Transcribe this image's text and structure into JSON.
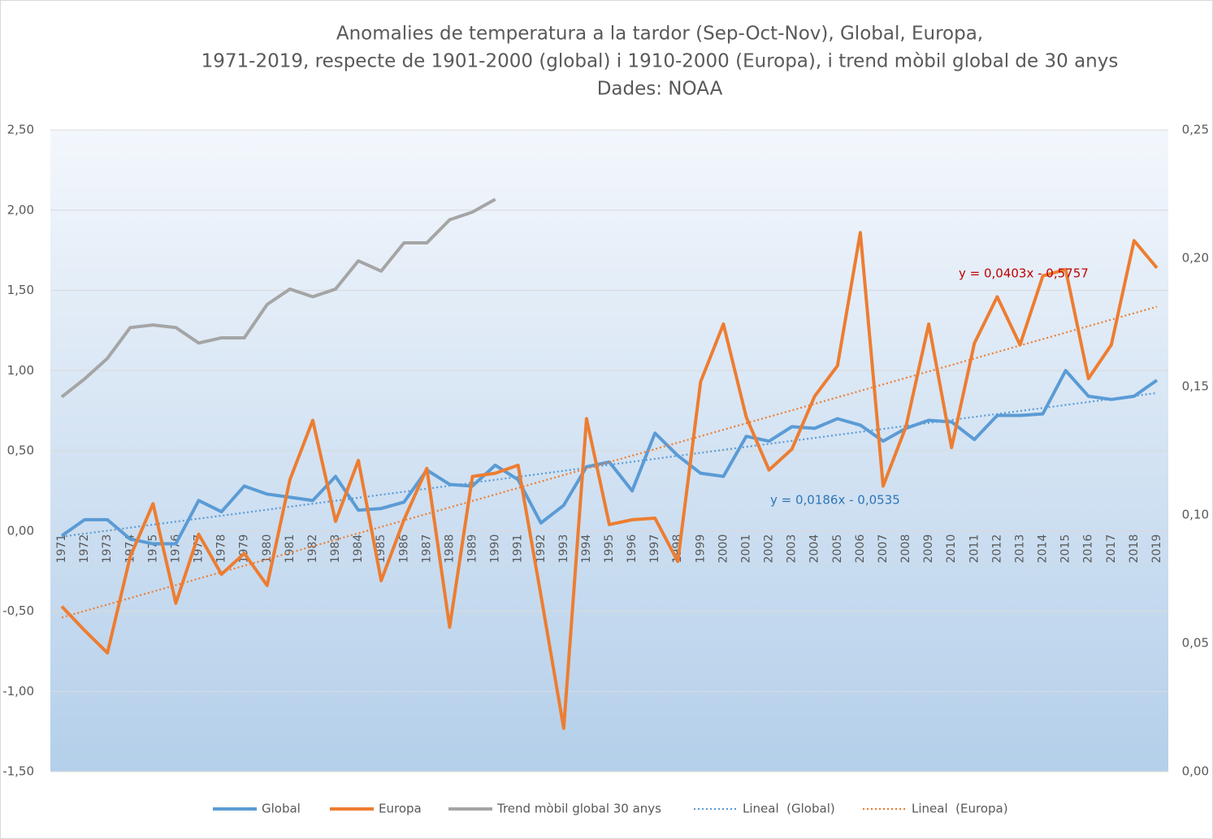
{
  "chart_data": {
    "type": "line",
    "title": [
      "Anomalies de temperatura a la tardor (Sep-Oct-Nov), Global, Europa,",
      "1971-2019, respecte de 1901-2000 (global) i 1910-2000 (Europa), i trend mòbil global de 30 anys",
      "Dades: NOAA"
    ],
    "categories": [
      "1971",
      "1972",
      "1973",
      "1974",
      "1975",
      "1976",
      "1977",
      "1978",
      "1979",
      "1980",
      "1981",
      "1982",
      "1983",
      "1984",
      "1985",
      "1986",
      "1987",
      "1988",
      "1989",
      "1990",
      "1991",
      "1992",
      "1993",
      "1994",
      "1995",
      "1996",
      "1997",
      "1998",
      "1999",
      "2000",
      "2001",
      "2002",
      "2003",
      "2004",
      "2005",
      "2006",
      "2007",
      "2008",
      "2009",
      "2010",
      "2011",
      "2012",
      "2013",
      "2014",
      "2015",
      "2016",
      "2017",
      "2018",
      "2019"
    ],
    "series": [
      {
        "name": "Global",
        "color": "#5b9bd5",
        "values": [
          -0.03,
          0.07,
          0.07,
          -0.05,
          -0.08,
          -0.08,
          0.19,
          0.12,
          0.28,
          0.23,
          0.21,
          0.19,
          0.34,
          0.13,
          0.14,
          0.18,
          0.38,
          0.29,
          0.28,
          0.41,
          0.32,
          0.05,
          0.16,
          0.4,
          0.43,
          0.25,
          0.61,
          0.47,
          0.36,
          0.34,
          0.59,
          0.56,
          0.65,
          0.64,
          0.7,
          0.66,
          0.56,
          0.64,
          0.69,
          0.68,
          0.57,
          0.72,
          0.72,
          0.73,
          1.0,
          0.84,
          0.82,
          0.84,
          0.94
        ],
        "trendline": {
          "name": "Lineal  (Global)",
          "equation": "y = 0,0186x - 0,0535",
          "equation_color": "#2e75b6"
        }
      },
      {
        "name": "Europa",
        "color": "#ed7d31",
        "values": [
          -0.47,
          -0.62,
          -0.76,
          -0.16,
          0.17,
          -0.45,
          -0.02,
          -0.27,
          -0.14,
          -0.34,
          0.32,
          0.69,
          0.06,
          0.44,
          -0.31,
          0.07,
          0.39,
          -0.6,
          0.34,
          0.36,
          0.41,
          -0.4,
          -1.23,
          0.7,
          0.04,
          0.07,
          0.08,
          -0.19,
          0.93,
          1.29,
          0.71,
          0.38,
          0.51,
          0.84,
          1.03,
          1.86,
          0.28,
          0.65,
          1.29,
          0.52,
          1.17,
          1.46,
          1.16,
          1.59,
          1.63,
          0.95,
          1.16,
          1.81,
          1.64
        ],
        "trendline": {
          "name": "Lineal  (Europa)",
          "equation": "y = 0,0403x - 0,5757",
          "equation_color": "#c00000"
        }
      },
      {
        "name": "Trend mòbil global 30 anys",
        "color": "#a5a5a5",
        "axis": "y2",
        "values": [
          0.146,
          0.153,
          0.161,
          0.173,
          0.174,
          0.173,
          0.167,
          0.169,
          0.169,
          0.182,
          0.188,
          0.185,
          0.188,
          0.199,
          0.195,
          0.206,
          0.206,
          0.215,
          0.218,
          0.223,
          null,
          null,
          null,
          null,
          null,
          null,
          null,
          null,
          null,
          null,
          null,
          null,
          null,
          null,
          null,
          null,
          null,
          null,
          null,
          null,
          null,
          null,
          null,
          null,
          null,
          null,
          null,
          null,
          null
        ]
      }
    ],
    "ylim": [
      -1.5,
      2.5
    ],
    "yticks": [
      {
        "value": -1.5,
        "label": "-1,50"
      },
      {
        "value": -1,
        "label": "-1,00"
      },
      {
        "value": -0.5,
        "label": "-0,50"
      },
      {
        "value": 0,
        "label": "0,00"
      },
      {
        "value": 0.5,
        "label": "0,50"
      },
      {
        "value": 1,
        "label": "1,00"
      },
      {
        "value": 1.5,
        "label": "1,50"
      },
      {
        "value": 2,
        "label": "2,00"
      },
      {
        "value": 2.5,
        "label": "2,50"
      }
    ],
    "y2lim": [
      0,
      0.25
    ],
    "y2ticks": [
      {
        "value": 0,
        "label": "0,00"
      },
      {
        "value": 0.05,
        "label": "0,05"
      },
      {
        "value": 0.1,
        "label": "0,10"
      },
      {
        "value": 0.15,
        "label": "0,15"
      },
      {
        "value": 0.2,
        "label": "0,20"
      },
      {
        "value": 0.25,
        "label": "0,25"
      }
    ],
    "grid": true,
    "legend": "bottom"
  }
}
